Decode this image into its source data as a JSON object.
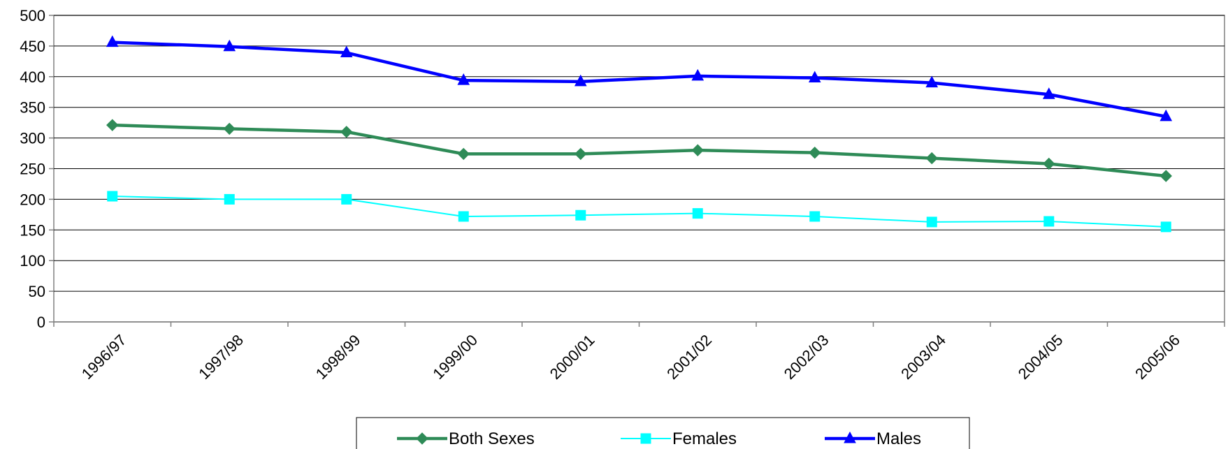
{
  "chart_data": {
    "type": "line",
    "title": "",
    "xlabel": "",
    "ylabel": "",
    "ylim": [
      0,
      500
    ],
    "yticks": [
      0,
      50,
      100,
      150,
      200,
      250,
      300,
      350,
      400,
      450,
      500
    ],
    "grid": true,
    "legend_position": "bottom",
    "categories": [
      "1996/97",
      "1997/98",
      "1998/99",
      "1999/00",
      "2000/01",
      "2001/02",
      "2002/03",
      "2003/04",
      "2004/05",
      "2005/06"
    ],
    "series": [
      {
        "name": "Both Sexes",
        "color": "#2E8B57",
        "marker": "diamond",
        "values": [
          321,
          315,
          310,
          274,
          274,
          280,
          276,
          267,
          258,
          238
        ]
      },
      {
        "name": "Females",
        "color": "#00FFFF",
        "marker": "square",
        "values": [
          205,
          200,
          200,
          172,
          174,
          177,
          172,
          163,
          164,
          155
        ]
      },
      {
        "name": "Males",
        "color": "#0000FF",
        "marker": "triangle",
        "values": [
          456,
          449,
          439,
          394,
          392,
          401,
          398,
          390,
          371,
          335
        ]
      }
    ]
  }
}
